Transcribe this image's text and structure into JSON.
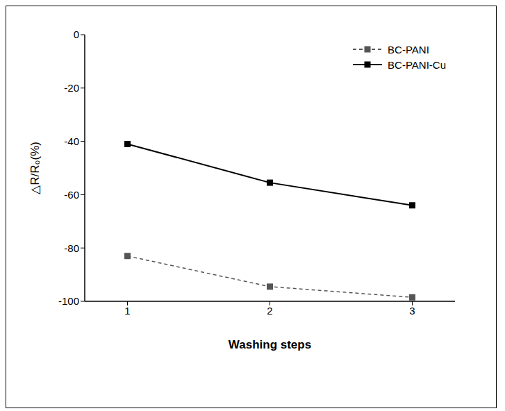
{
  "chart_data": {
    "type": "line",
    "x_label": "Washing steps",
    "y_label": "△R/R₀(%)",
    "x": [
      1,
      2,
      3
    ],
    "xlim": [
      0.7,
      3.3
    ],
    "xticks": [
      1,
      2,
      3
    ],
    "ylim": [
      -100,
      0
    ],
    "yticks": [
      -100,
      -80,
      -60,
      -40,
      -20,
      0
    ],
    "grid": false,
    "legend": "upper right",
    "series": [
      {
        "name": "BC-PANI",
        "color": "#555555",
        "line_style": "dashed",
        "marker": "square",
        "values": [
          -83,
          -94.5,
          -98.5
        ]
      },
      {
        "name": "BC-PANI-Cu",
        "color": "#000000",
        "line_style": "solid",
        "marker": "square",
        "values": [
          -41,
          -55.5,
          -64
        ]
      }
    ]
  }
}
